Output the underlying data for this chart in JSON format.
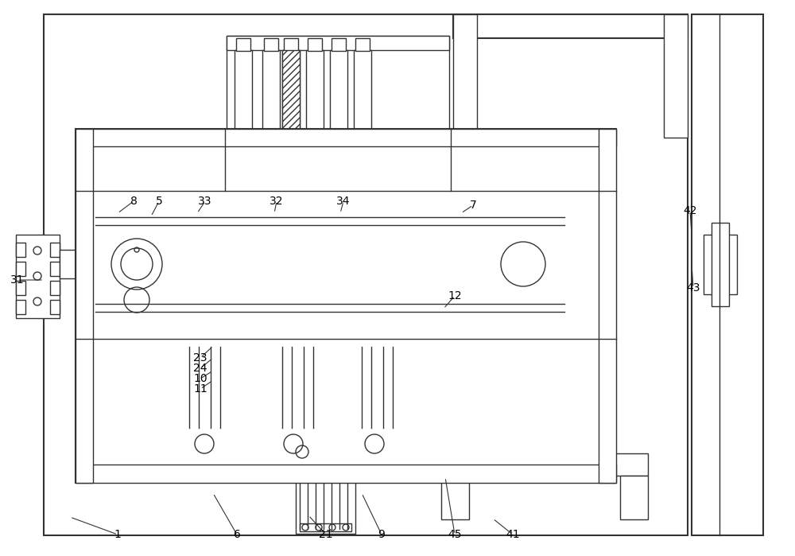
{
  "bg": "#ffffff",
  "lc": "#333333",
  "lw": 1.0,
  "lw2": 1.5,
  "fig_w": 10.0,
  "fig_h": 6.99,
  "dpi": 100
}
